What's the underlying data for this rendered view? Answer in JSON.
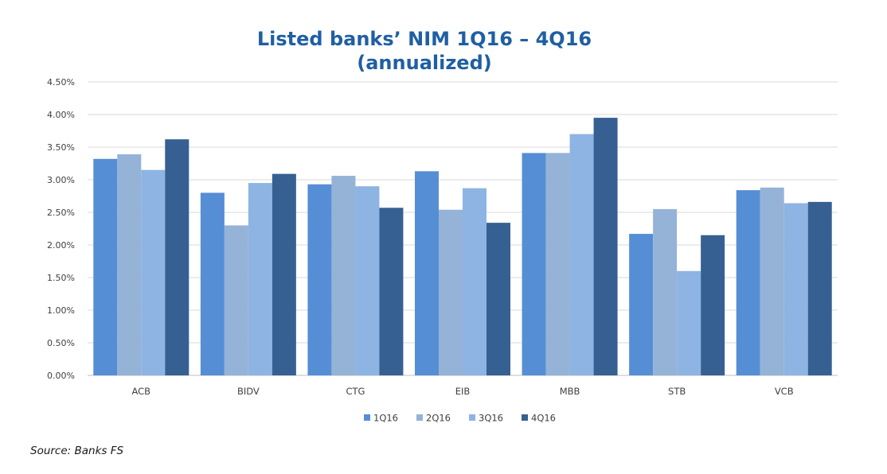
{
  "chart_data": {
    "type": "bar",
    "title_line1": "Listed banks’ NIM 1Q16 – 4Q16",
    "title_line2": "(annualized)",
    "xlabel": "",
    "ylabel": "",
    "categories": [
      "ACB",
      "BIDV",
      "CTG",
      "EIB",
      "MBB",
      "STB",
      "VCB"
    ],
    "series": [
      {
        "name": "1Q16",
        "color": "#558ed5",
        "values": [
          3.32,
          2.8,
          2.93,
          3.13,
          3.41,
          2.17,
          2.84
        ]
      },
      {
        "name": "2Q16",
        "color": "#95b3d7",
        "values": [
          3.39,
          2.3,
          3.06,
          2.54,
          3.41,
          2.55,
          2.88
        ]
      },
      {
        "name": "3Q16",
        "color": "#8db4e2",
        "values": [
          3.15,
          2.95,
          2.9,
          2.87,
          3.7,
          1.6,
          2.64
        ]
      },
      {
        "name": "4Q16",
        "color": "#366092",
        "values": [
          3.62,
          3.09,
          2.57,
          2.34,
          3.95,
          2.15,
          2.66
        ]
      }
    ],
    "yticks": [
      "0.00%",
      "0.50%",
      "1.00%",
      "1.50%",
      "2.00%",
      "2.50%",
      "3.00%",
      "3.50%",
      "4.00%",
      "4.50%"
    ],
    "ylim": [
      0,
      4.5
    ],
    "grid": true,
    "legend_position": "bottom"
  },
  "colors": {
    "title": "#1f5fa3",
    "gridline": "#d9d9d9",
    "axis": "#bfbfbf"
  },
  "source_text": "Source: Banks FS"
}
